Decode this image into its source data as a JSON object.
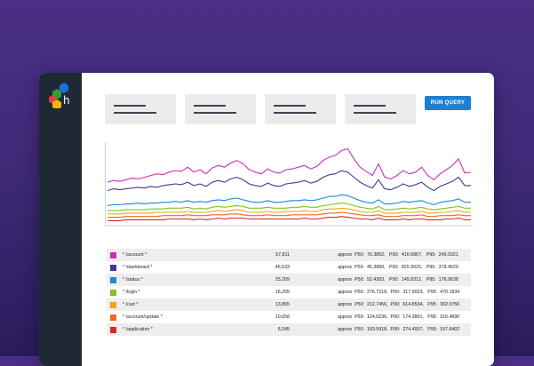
{
  "toolbar": {
    "run_label": "RUN QUERY",
    "run_color": "#1f7fd0"
  },
  "filters": [
    {
      "icon": "filter-placeholder"
    },
    {
      "icon": "filter-placeholder"
    },
    {
      "icon": "filter-placeholder"
    },
    {
      "icon": "filter-placeholder"
    }
  ],
  "logo": {
    "icon": "honeycomb-logo-icon",
    "colors": [
      "#1a6fd8",
      "#2e9e3e",
      "#e23b3b",
      "#f2b705"
    ]
  },
  "chart_data": {
    "type": "line",
    "title": "",
    "xlabel": "",
    "ylabel": "",
    "x": [
      1,
      2,
      3,
      4,
      5,
      6,
      7,
      8,
      9,
      10,
      11,
      12,
      13,
      14,
      15,
      16,
      17,
      18,
      19,
      20,
      21,
      22,
      23,
      24,
      25,
      26,
      27,
      28,
      29,
      30,
      31,
      32,
      33,
      34,
      35,
      36,
      37,
      38,
      39,
      40,
      41,
      42,
      43,
      44,
      45,
      46,
      47,
      48,
      49,
      50,
      51,
      52,
      53,
      54,
      55,
      56,
      57,
      58,
      59,
      60
    ],
    "ylim": [
      0,
      100
    ],
    "series": [
      {
        "color": "#cc2fb5",
        "values": [
          52,
          54,
          53,
          55,
          57,
          56,
          58,
          60,
          62,
          61,
          64,
          66,
          65,
          70,
          64,
          67,
          62,
          69,
          72,
          70,
          75,
          78,
          74,
          67,
          64,
          62,
          68,
          64,
          63,
          67,
          68,
          70,
          72,
          68,
          71,
          78,
          82,
          84,
          90,
          92,
          80,
          70,
          65,
          60,
          74,
          58,
          56,
          60,
          66,
          62,
          64,
          70,
          60,
          55,
          62,
          67,
          72,
          80,
          63,
          64
        ]
      },
      {
        "color": "#4a3593",
        "values": [
          42,
          44,
          43,
          44,
          45,
          46,
          45,
          47,
          46,
          48,
          49,
          50,
          49,
          52,
          48,
          50,
          47,
          52,
          54,
          52,
          56,
          58,
          55,
          50,
          48,
          47,
          51,
          48,
          47,
          50,
          51,
          52,
          54,
          51,
          53,
          58,
          61,
          62,
          66,
          64,
          58,
          52,
          48,
          45,
          55,
          44,
          43,
          46,
          50,
          47,
          49,
          52,
          46,
          42,
          47,
          50,
          53,
          58,
          48,
          48
        ]
      },
      {
        "color": "#1e88d6",
        "values": [
          24,
          25,
          25,
          26,
          26,
          27,
          26,
          27,
          27,
          28,
          28,
          29,
          28,
          30,
          28,
          29,
          28,
          30,
          31,
          30,
          32,
          33,
          31,
          29,
          28,
          28,
          30,
          28,
          28,
          29,
          30,
          30,
          31,
          30,
          31,
          33,
          35,
          35,
          37,
          36,
          33,
          30,
          28,
          27,
          31,
          26,
          26,
          27,
          29,
          28,
          29,
          30,
          27,
          25,
          28,
          29,
          30,
          32,
          28,
          28
        ]
      },
      {
        "color": "#80c21f",
        "values": [
          18,
          18,
          18,
          19,
          19,
          19,
          19,
          20,
          20,
          20,
          21,
          21,
          21,
          22,
          20,
          21,
          20,
          22,
          23,
          22,
          23,
          24,
          23,
          21,
          21,
          21,
          22,
          21,
          21,
          21,
          22,
          22,
          23,
          22,
          22,
          24,
          25,
          26,
          27,
          26,
          24,
          22,
          21,
          20,
          23,
          19,
          19,
          20,
          21,
          20,
          21,
          22,
          20,
          19,
          20,
          21,
          22,
          23,
          21,
          21
        ]
      },
      {
        "color": "#f2a316",
        "values": [
          14,
          14,
          14,
          15,
          15,
          15,
          15,
          15,
          16,
          16,
          16,
          16,
          16,
          17,
          16,
          16,
          16,
          17,
          18,
          17,
          18,
          19,
          18,
          16,
          16,
          16,
          17,
          16,
          16,
          17,
          17,
          17,
          18,
          17,
          17,
          19,
          20,
          20,
          21,
          20,
          19,
          17,
          16,
          16,
          18,
          15,
          15,
          15,
          16,
          16,
          16,
          17,
          15,
          15,
          16,
          16,
          17,
          18,
          16,
          16
        ]
      },
      {
        "color": "#ef6a1f",
        "values": [
          10,
          10,
          10,
          11,
          11,
          11,
          11,
          11,
          11,
          12,
          12,
          12,
          12,
          13,
          12,
          12,
          12,
          13,
          13,
          13,
          14,
          14,
          13,
          12,
          12,
          12,
          13,
          12,
          12,
          12,
          13,
          13,
          13,
          13,
          13,
          14,
          15,
          15,
          16,
          15,
          14,
          13,
          12,
          12,
          13,
          11,
          11,
          11,
          12,
          12,
          12,
          13,
          11,
          11,
          12,
          12,
          12,
          13,
          12,
          12
        ]
      },
      {
        "color": "#d7262c",
        "values": [
          6,
          6,
          6,
          7,
          7,
          7,
          7,
          7,
          7,
          7,
          8,
          8,
          8,
          8,
          7,
          8,
          7,
          8,
          9,
          8,
          9,
          9,
          9,
          8,
          8,
          8,
          8,
          8,
          8,
          8,
          8,
          8,
          9,
          8,
          8,
          9,
          10,
          10,
          11,
          10,
          9,
          8,
          8,
          7,
          9,
          7,
          7,
          7,
          8,
          7,
          8,
          8,
          7,
          7,
          7,
          8,
          8,
          9,
          7,
          7
        ]
      }
    ]
  },
  "results": [
    {
      "label": "* /account *",
      "count": "57,811",
      "stats": "approx  P50:  76.3862,   P90:  416.6867,   P95:  249.9321",
      "color": "#cc2fb5"
    },
    {
      "label": "* /dashboard *",
      "count": "46,533",
      "stats": "approx  P50:  45.3860,   P90:  825.9025,   P95:  378.4629",
      "color": "#4a3593"
    },
    {
      "label": "* /status *",
      "count": "25,209",
      "stats": "approx  P50:  52.4283,   P90:  145.8312,   P95:  176.9638",
      "color": "#1e88d6"
    },
    {
      "label": "* /login *",
      "count": "16,205",
      "stats": "approx  P50:  276.7218,  P90:  317.9023,   P95:  470.1834",
      "color": "#80c21f"
    },
    {
      "label": "* /cart *",
      "count": "13,865",
      "stats": "approx  P50:  212.7456,  P90:  614.8534,   P95:  302.0756",
      "color": "#f2a316"
    },
    {
      "label": "* /account/update *",
      "count": "10,658",
      "stats": "approx  P50:  124.0236,  P90:  174.3801,   P95:  316.4890",
      "color": "#ef6a1f"
    },
    {
      "label": "* /application *",
      "count": "8,345",
      "stats": "approx  P50:  183.5918,  P90:  274.4937,   P95:  157.6402",
      "color": "#d7262c"
    }
  ]
}
